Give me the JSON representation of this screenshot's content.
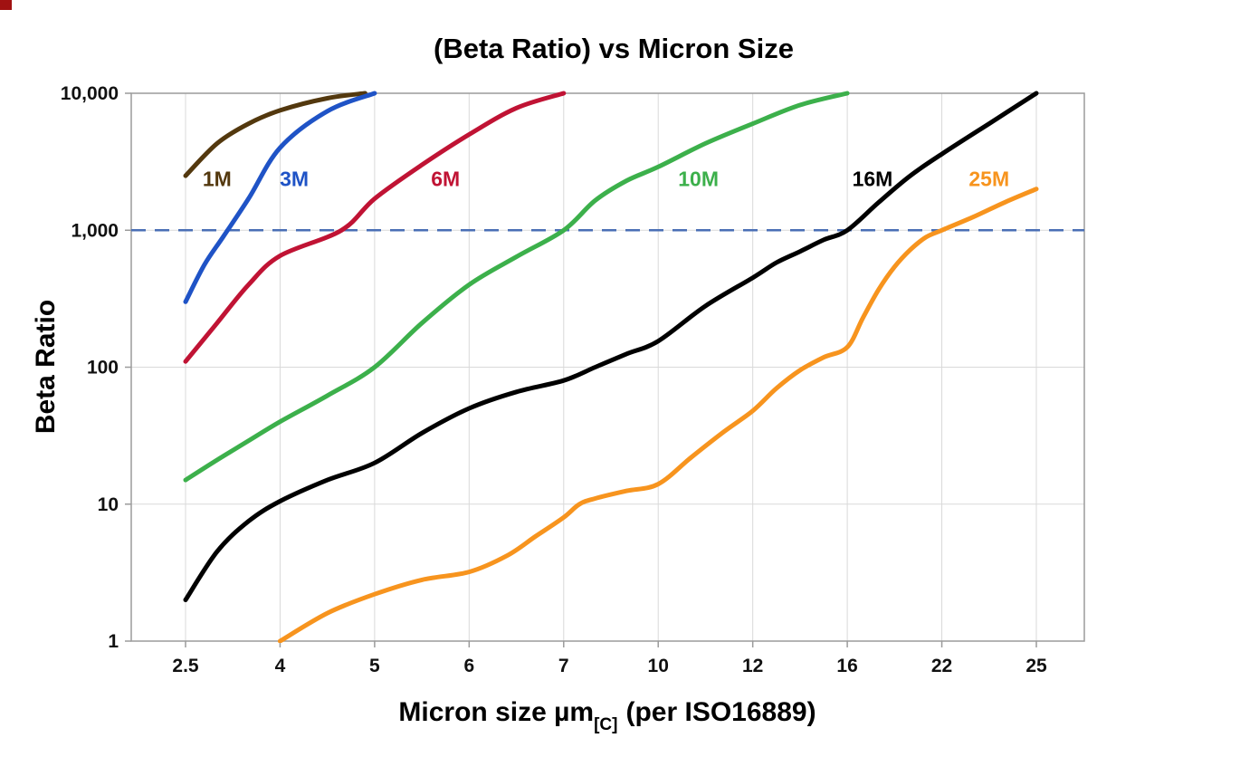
{
  "page": {
    "background": "#ffffff"
  },
  "chart_data": {
    "type": "line",
    "title": "(Beta Ratio) vs Micron Size",
    "ylabel": "Beta Ratio",
    "xlabel_main": "Micron size µm",
    "xlabel_sub": "[C]",
    "xlabel_rest": "(per ISO16889)",
    "x_scale": "categorical-ticks",
    "y_scale": "log",
    "ylim": [
      1,
      10000
    ],
    "x_ticks": [
      2.5,
      4,
      5,
      6,
      7,
      10,
      12,
      16,
      22,
      25
    ],
    "x_tick_labels": [
      "2.5",
      "4",
      "5",
      "6",
      "7",
      "10",
      "12",
      "16",
      "22",
      "25"
    ],
    "y_ticks": [
      1,
      10,
      100,
      1000,
      10000
    ],
    "y_tick_labels": [
      "1",
      "10",
      "100",
      "1,000",
      "10,000"
    ],
    "grid": true,
    "grid_color": "#d9d9d9",
    "frame_color": "#9b9b9b",
    "reference_line": {
      "value": 1000,
      "color": "#4a6fb5",
      "style": "dashed"
    },
    "legend_position": "inline-labels",
    "series": [
      {
        "name": "1M",
        "color": "#53380e",
        "label_pos": [
          3.0,
          2100
        ],
        "points": [
          [
            2.5,
            2500
          ],
          [
            3,
            4300
          ],
          [
            3.5,
            6000
          ],
          [
            4,
            7500
          ],
          [
            4.5,
            9200
          ],
          [
            4.9,
            10000
          ]
        ]
      },
      {
        "name": "3M",
        "color": "#1f53c6",
        "label_pos": [
          4.15,
          2100
        ],
        "points": [
          [
            2.5,
            300
          ],
          [
            2.8,
            560
          ],
          [
            3.1,
            900
          ],
          [
            3.5,
            1700
          ],
          [
            4,
            4000
          ],
          [
            4.5,
            7400
          ],
          [
            5,
            10000
          ]
        ]
      },
      {
        "name": "6M",
        "color": "#c01334",
        "label_pos": [
          5.75,
          2100
        ],
        "points": [
          [
            2.5,
            110
          ],
          [
            3,
            210
          ],
          [
            3.5,
            400
          ],
          [
            4,
            650
          ],
          [
            4.65,
            1000
          ],
          [
            5,
            1700
          ],
          [
            5.5,
            3000
          ],
          [
            6,
            5000
          ],
          [
            6.5,
            7800
          ],
          [
            7,
            10000
          ]
        ]
      },
      {
        "name": "10M",
        "color": "#3cb04b",
        "label_pos": [
          10.85,
          2100
        ],
        "points": [
          [
            2.5,
            15
          ],
          [
            3,
            21
          ],
          [
            3.5,
            29
          ],
          [
            4,
            40
          ],
          [
            4.5,
            62
          ],
          [
            5,
            100
          ],
          [
            5.5,
            210
          ],
          [
            6,
            400
          ],
          [
            6.5,
            640
          ],
          [
            7,
            1000
          ],
          [
            8,
            1650
          ],
          [
            9,
            2300
          ],
          [
            10,
            2900
          ],
          [
            11,
            4300
          ],
          [
            12,
            6000
          ],
          [
            14,
            8200
          ],
          [
            16,
            10000
          ]
        ]
      },
      {
        "name": "16M",
        "color": "#000000",
        "label_pos": [
          17.6,
          2100
        ],
        "points": [
          [
            2.5,
            2
          ],
          [
            3,
            4.5
          ],
          [
            3.5,
            7.5
          ],
          [
            4,
            10.5
          ],
          [
            4.5,
            15
          ],
          [
            5,
            20
          ],
          [
            5.5,
            33
          ],
          [
            6,
            50
          ],
          [
            6.5,
            66
          ],
          [
            7,
            80
          ],
          [
            8,
            100
          ],
          [
            9,
            125
          ],
          [
            10,
            155
          ],
          [
            11,
            280
          ],
          [
            12,
            450
          ],
          [
            13,
            580
          ],
          [
            14,
            700
          ],
          [
            15,
            850
          ],
          [
            16,
            1000
          ],
          [
            18,
            1600
          ],
          [
            20,
            2500
          ],
          [
            22,
            3600
          ],
          [
            23.5,
            6000
          ],
          [
            25,
            10000
          ]
        ]
      },
      {
        "name": "25M",
        "color": "#f7941e",
        "label_pos": [
          23.5,
          2100
        ],
        "points": [
          [
            4,
            1
          ],
          [
            4.5,
            1.6
          ],
          [
            5,
            2.2
          ],
          [
            5.5,
            2.8
          ],
          [
            6,
            3.2
          ],
          [
            6.4,
            4.2
          ],
          [
            6.7,
            5.8
          ],
          [
            7,
            8
          ],
          [
            7.5,
            10
          ],
          [
            8,
            11
          ],
          [
            9,
            12.5
          ],
          [
            10,
            14
          ],
          [
            10.7,
            22
          ],
          [
            11.4,
            34
          ],
          [
            12,
            48
          ],
          [
            13,
            70
          ],
          [
            14,
            95
          ],
          [
            15,
            118
          ],
          [
            16,
            140
          ],
          [
            17,
            230
          ],
          [
            18,
            370
          ],
          [
            19,
            540
          ],
          [
            20,
            720
          ],
          [
            21,
            890
          ],
          [
            22,
            1000
          ],
          [
            23,
            1250
          ],
          [
            24,
            1600
          ],
          [
            25,
            2000
          ]
        ]
      }
    ]
  }
}
